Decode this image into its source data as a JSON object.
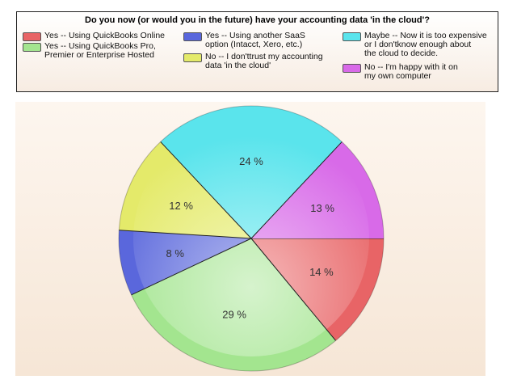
{
  "chart_data": {
    "type": "pie",
    "title": "Do you now (or would you in the future) have your accounting data 'in the cloud'?",
    "legend_position": "top",
    "slices": [
      {
        "label": "Yes -- Using QuickBooks Online",
        "value": 14,
        "display": "14 %",
        "color": "#e86466"
      },
      {
        "label": "Yes -- Using QuickBooks Pro, Premier or Enterprise Hosted",
        "value": 29,
        "display": "29 %",
        "color": "#a3e58f"
      },
      {
        "label": "Yes -- Using another SaaS option (Intacct, Xero, etc.)",
        "value": 8,
        "display": "8 %",
        "color": "#5a67dc"
      },
      {
        "label": "No -- I don'ttrust my accounting data 'in the cloud'",
        "value": 12,
        "display": "12 %",
        "color": "#e4ea6a"
      },
      {
        "label": "Maybe -- Now it is too expensive or I don'tknow enough about the cloud to decide.",
        "value": 24,
        "display": "24 %",
        "color": "#5ae4ec"
      },
      {
        "label": "No -- I'm happy with it on my own computer",
        "value": 13,
        "display": "13 %",
        "color": "#d86ae8"
      }
    ]
  },
  "legend": {
    "items": [
      {
        "lines": [
          "Yes -- Using QuickBooks Online"
        ],
        "color": "#e86466"
      },
      {
        "lines": [
          "Yes -- Using QuickBooks Pro,",
          "Premier or Enterprise Hosted"
        ],
        "color": "#a3e58f"
      },
      {
        "lines": [
          "Yes -- Using another SaaS",
          "option (Intacct, Xero, etc.)"
        ],
        "color": "#5a67dc"
      },
      {
        "lines": [
          "No -- I don'ttrust my accounting",
          "data 'in the cloud'"
        ],
        "color": "#e4ea6a"
      },
      {
        "lines": [
          "Maybe -- Now it is too expensive",
          "or I don'tknow enough about",
          "the cloud to decide."
        ],
        "color": "#5ae4ec"
      },
      {
        "lines": [
          "No -- I'm happy with it on",
          "my own computer"
        ],
        "color": "#d86ae8"
      }
    ]
  }
}
